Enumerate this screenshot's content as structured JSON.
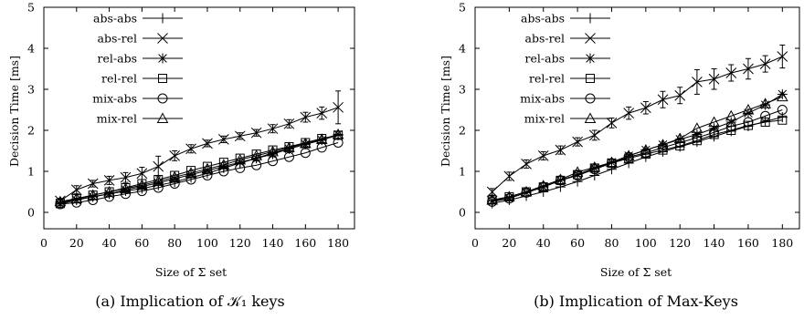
{
  "chart_data": [
    {
      "type": "line",
      "xlabel": "Size of Σ set",
      "ylabel": "Decision Time [ms]",
      "xlim": [
        0,
        190
      ],
      "ylim": [
        -0.4,
        5
      ],
      "xticks": [
        0,
        20,
        40,
        60,
        80,
        100,
        120,
        140,
        160,
        180
      ],
      "yticks": [
        0,
        1,
        2,
        3,
        4,
        5
      ],
      "grid": false,
      "legend": "top-left",
      "caption": "(a) Implication of 𝒦₁ keys",
      "x": [
        10,
        20,
        30,
        40,
        50,
        60,
        70,
        80,
        90,
        100,
        110,
        120,
        130,
        140,
        150,
        160,
        170,
        180
      ],
      "series": [
        {
          "name": "abs-abs",
          "marker": "plus",
          "values": [
            0.25,
            0.32,
            0.38,
            0.45,
            0.52,
            0.58,
            0.66,
            0.74,
            0.85,
            0.95,
            1.08,
            1.2,
            1.32,
            1.45,
            1.55,
            1.66,
            1.77,
            1.88
          ]
        },
        {
          "name": "abs-rel",
          "marker": "x",
          "values": [
            0.28,
            0.55,
            0.7,
            0.78,
            0.85,
            0.95,
            1.12,
            1.38,
            1.55,
            1.68,
            1.78,
            1.86,
            1.94,
            2.04,
            2.16,
            2.32,
            2.42,
            2.56
          ],
          "errors": [
            0.06,
            0.1,
            0.08,
            0.1,
            0.12,
            0.15,
            0.25,
            0.12,
            0.1,
            0.08,
            0.08,
            0.08,
            0.08,
            0.1,
            0.1,
            0.12,
            0.15,
            0.4
          ]
        },
        {
          "name": "rel-abs",
          "marker": "star",
          "values": [
            0.2,
            0.3,
            0.38,
            0.45,
            0.55,
            0.63,
            0.72,
            0.82,
            0.92,
            1.02,
            1.12,
            1.22,
            1.32,
            1.42,
            1.55,
            1.66,
            1.76,
            1.9
          ]
        },
        {
          "name": "rel-rel",
          "marker": "square",
          "values": [
            0.22,
            0.33,
            0.42,
            0.5,
            0.6,
            0.7,
            0.8,
            0.9,
            1.02,
            1.12,
            1.22,
            1.32,
            1.42,
            1.52,
            1.6,
            1.7,
            1.8,
            1.88
          ]
        },
        {
          "name": "mix-abs",
          "marker": "circle",
          "values": [
            0.2,
            0.24,
            0.3,
            0.38,
            0.45,
            0.52,
            0.6,
            0.7,
            0.8,
            0.9,
            1.0,
            1.08,
            1.15,
            1.25,
            1.35,
            1.45,
            1.58,
            1.7
          ]
        },
        {
          "name": "mix-rel",
          "marker": "triangle",
          "values": [
            0.26,
            0.34,
            0.42,
            0.5,
            0.58,
            0.66,
            0.76,
            0.86,
            0.96,
            1.06,
            1.16,
            1.28,
            1.38,
            1.48,
            1.58,
            1.68,
            1.78,
            1.9
          ]
        }
      ]
    },
    {
      "type": "line",
      "xlabel": "Size of Σ set",
      "ylabel": "Decision Time [ms]",
      "xlim": [
        0,
        190
      ],
      "ylim": [
        -0.4,
        5
      ],
      "xticks": [
        0,
        20,
        40,
        60,
        80,
        100,
        120,
        140,
        160,
        180
      ],
      "yticks": [
        0,
        1,
        2,
        3,
        4,
        5
      ],
      "grid": false,
      "legend": "top-left",
      "caption": "(b) Implication of Max-Keys",
      "x": [
        10,
        20,
        30,
        40,
        50,
        60,
        70,
        80,
        90,
        100,
        110,
        120,
        130,
        140,
        150,
        160,
        170,
        180
      ],
      "series": [
        {
          "name": "abs-abs",
          "marker": "plus",
          "values": [
            0.22,
            0.3,
            0.4,
            0.5,
            0.62,
            0.75,
            0.9,
            1.05,
            1.2,
            1.35,
            1.48,
            1.6,
            1.72,
            1.85,
            1.98,
            2.1,
            2.22,
            2.32
          ]
        },
        {
          "name": "abs-rel",
          "marker": "x",
          "values": [
            0.5,
            0.88,
            1.18,
            1.38,
            1.52,
            1.72,
            1.88,
            2.18,
            2.42,
            2.55,
            2.75,
            2.85,
            3.18,
            3.25,
            3.4,
            3.5,
            3.62,
            3.8
          ],
          "errors": [
            0.08,
            0.1,
            0.1,
            0.1,
            0.1,
            0.1,
            0.12,
            0.12,
            0.15,
            0.15,
            0.2,
            0.2,
            0.3,
            0.25,
            0.2,
            0.25,
            0.2,
            0.28
          ]
        },
        {
          "name": "rel-abs",
          "marker": "star",
          "values": [
            0.28,
            0.35,
            0.48,
            0.62,
            0.78,
            0.92,
            1.08,
            1.22,
            1.38,
            1.52,
            1.65,
            1.78,
            1.9,
            2.05,
            2.2,
            2.42,
            2.62,
            2.88
          ]
        },
        {
          "name": "rel-rel",
          "marker": "square",
          "values": [
            0.3,
            0.38,
            0.5,
            0.62,
            0.78,
            0.92,
            1.08,
            1.2,
            1.32,
            1.42,
            1.52,
            1.62,
            1.75,
            1.9,
            2.0,
            2.12,
            2.2,
            2.25
          ]
        },
        {
          "name": "mix-abs",
          "marker": "circle",
          "values": [
            0.26,
            0.34,
            0.48,
            0.62,
            0.78,
            0.9,
            1.05,
            1.2,
            1.35,
            1.45,
            1.58,
            1.7,
            1.82,
            1.95,
            2.1,
            2.2,
            2.35,
            2.5
          ]
        },
        {
          "name": "mix-rel",
          "marker": "triangle",
          "values": [
            0.3,
            0.38,
            0.5,
            0.65,
            0.8,
            0.98,
            1.1,
            1.22,
            1.38,
            1.52,
            1.65,
            1.8,
            2.05,
            2.2,
            2.35,
            2.5,
            2.65,
            2.82
          ]
        }
      ]
    }
  ]
}
